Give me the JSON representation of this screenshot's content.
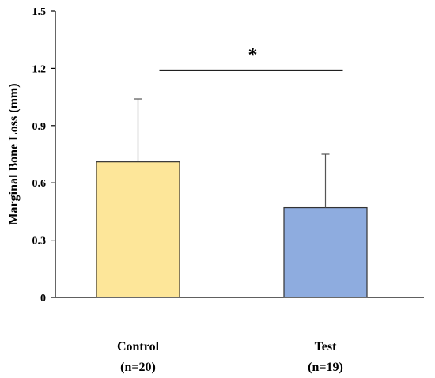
{
  "chart_data": {
    "type": "bar",
    "title": "",
    "xlabel": "",
    "ylabel": "Marginal Bone Loss (mm)",
    "ylim": [
      0,
      1.5
    ],
    "yticks": [
      "0",
      "0.3",
      "0.6",
      "0.9",
      "1.2",
      "1.5"
    ],
    "categories": [
      {
        "name": "Control",
        "n": "(n=20)"
      },
      {
        "name": "Test",
        "n": "(n=19)"
      }
    ],
    "values": [
      0.71,
      0.47
    ],
    "error_plus": [
      0.33,
      0.28
    ],
    "colors": [
      "#fde699",
      "#8eacdf"
    ],
    "significance": {
      "label": "*",
      "between": [
        0,
        1
      ],
      "level": 1.19
    },
    "grid": false,
    "legend": "none"
  }
}
